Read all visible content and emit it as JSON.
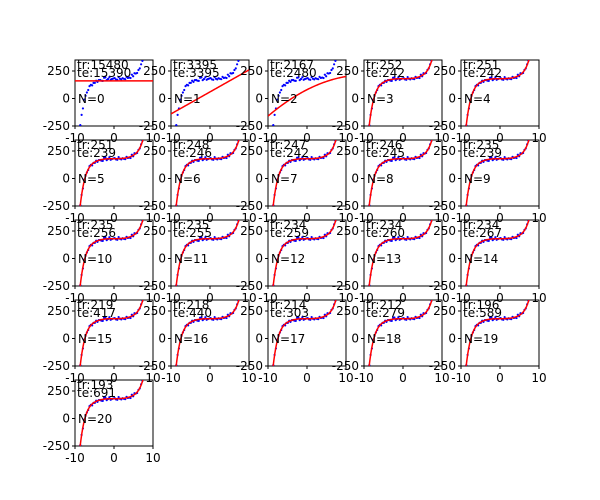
{
  "chart_data": {
    "type": "scatter",
    "description": "Grid of 21 polynomial-fit subplots (N = 0..20), each showing blue training points and a red fitted curve.",
    "x_range": [
      -10,
      10
    ],
    "y_range": [
      -250,
      350
    ],
    "x_ticks": [
      -10,
      0,
      10
    ],
    "y_ticks": [
      -250,
      0,
      250
    ],
    "colors": {
      "points": "#0000ff",
      "fit": "#ff0000"
    },
    "subplots": [
      {
        "N": 0,
        "tr_label": "tr:15480",
        "te_label": "te:15390"
      },
      {
        "N": 1,
        "tr_label": "tr:3395",
        "te_label": "te:3395"
      },
      {
        "N": 2,
        "tr_label": "tr:2167",
        "te_label": "te:2480"
      },
      {
        "N": 3,
        "tr_label": "tr:252",
        "te_label": "te:242"
      },
      {
        "N": 4,
        "tr_label": "tr:251",
        "te_label": "te:242"
      },
      {
        "N": 5,
        "tr_label": "tr:251",
        "te_label": "te:239"
      },
      {
        "N": 6,
        "tr_label": "tr:248",
        "te_label": "te:246"
      },
      {
        "N": 7,
        "tr_label": "tr:247",
        "te_label": "te:242"
      },
      {
        "N": 8,
        "tr_label": "tr:246",
        "te_label": "te:245"
      },
      {
        "N": 9,
        "tr_label": "tr:235",
        "te_label": "te:239"
      },
      {
        "N": 10,
        "tr_label": "tr:235",
        "te_label": "te:256"
      },
      {
        "N": 11,
        "tr_label": "tr:235",
        "te_label": "te:255"
      },
      {
        "N": 12,
        "tr_label": "tr:234",
        "te_label": "te:259"
      },
      {
        "N": 13,
        "tr_label": "tr:234",
        "te_label": "te:260"
      },
      {
        "N": 14,
        "tr_label": "tr:234",
        "te_label": "te:267"
      },
      {
        "N": 15,
        "tr_label": "tr:219",
        "te_label": "te:417"
      },
      {
        "N": 16,
        "tr_label": "tr:218",
        "te_label": "te:440"
      },
      {
        "N": 17,
        "tr_label": "tr:214",
        "te_label": "te:303"
      },
      {
        "N": 18,
        "tr_label": "tr:212",
        "te_label": "te:279"
      },
      {
        "N": 19,
        "tr_label": "tr:196",
        "te_label": "te:589"
      },
      {
        "N": 20,
        "tr_label": "tr:193",
        "te_label": "te:691"
      }
    ]
  }
}
